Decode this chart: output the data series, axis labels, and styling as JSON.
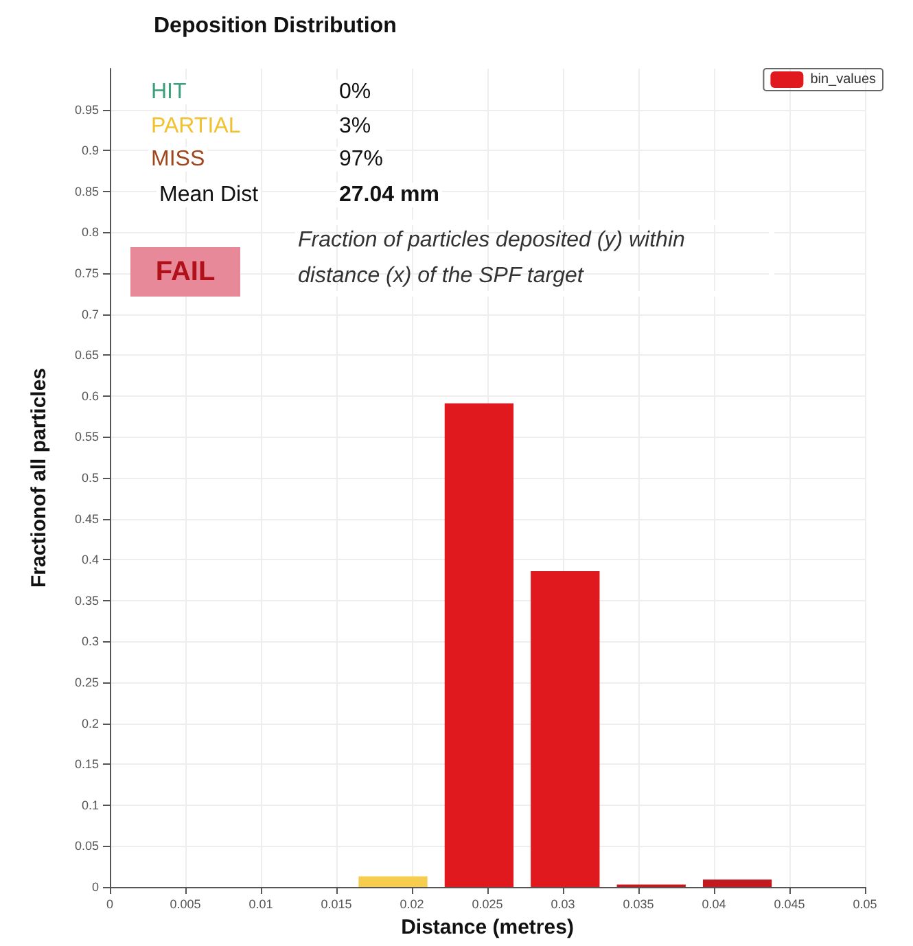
{
  "chart_data": {
    "type": "histogram",
    "title": "Deposition Distribution",
    "xlabel": "Distance (metres)",
    "ylabel": "Fractionof all particles",
    "bins": [
      0.0159,
      0.0216,
      0.0273,
      0.033,
      0.0387,
      0.0444
    ],
    "series": [
      {
        "name": "bin_values",
        "color": "#e0191e",
        "colors": [
          "#f7cd4f",
          "#e0191e",
          "#e0191e",
          "#c21a1e",
          "#c21a1e"
        ],
        "values": [
          0.013,
          0.591,
          0.386,
          0.003,
          0.009
        ]
      }
    ],
    "xlim": [
      0,
      0.05
    ],
    "xticks": [
      0,
      0.005,
      0.01,
      0.015,
      0.02,
      0.025,
      0.03,
      0.035,
      0.04,
      0.045,
      0.05
    ],
    "ylim": [
      0,
      1
    ],
    "yticks": [
      0,
      0.05,
      0.1,
      0.15,
      0.2,
      0.25,
      0.3,
      0.35,
      0.4,
      0.45,
      0.5,
      0.55,
      0.6,
      0.65,
      0.7,
      0.75,
      0.8,
      0.85,
      0.9,
      0.95
    ],
    "grid": true,
    "legend": "top right",
    "annotations": [
      "HIT",
      "0%",
      "PARTIAL",
      "3%",
      "MISS",
      "97%",
      "Mean Dist",
      "27.04 mm",
      "Fraction of particles deposited (y) within distance (x) of the SPF target",
      "FAIL"
    ]
  }
}
